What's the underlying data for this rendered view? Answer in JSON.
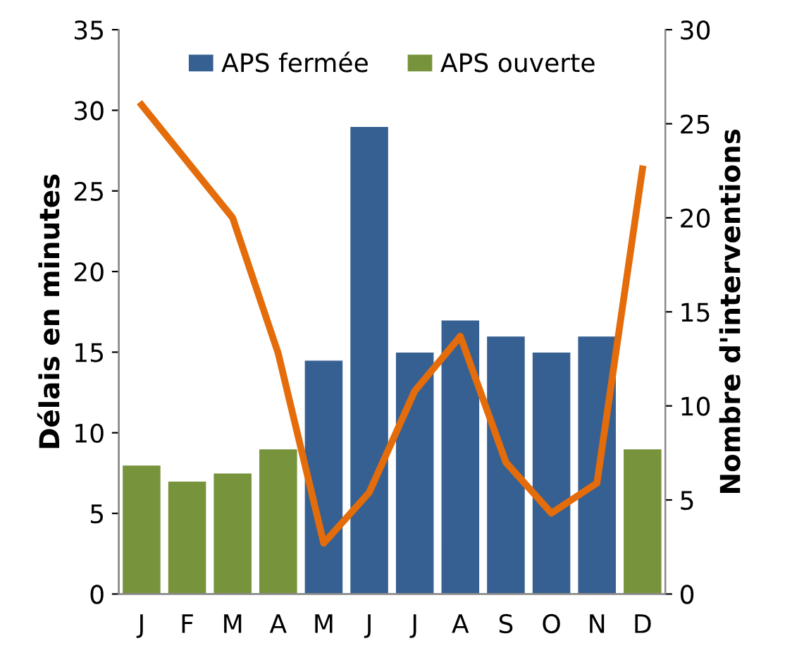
{
  "chart_data": {
    "type": "bar",
    "ylabel": "Délais en minutes",
    "y2label": "Nombre d'interventions",
    "categories": [
      "J",
      "F",
      "M",
      "A",
      "M",
      "J",
      "J",
      "A",
      "S",
      "O",
      "N",
      "D"
    ],
    "series": [
      {
        "name": "APS fermée",
        "color": "#366092",
        "values": [
          null,
          null,
          null,
          null,
          14.5,
          29,
          15,
          17,
          16,
          15,
          16,
          null
        ]
      },
      {
        "name": "APS ouverte",
        "color": "#77933c",
        "values": [
          8,
          7,
          7.5,
          9,
          null,
          null,
          null,
          null,
          null,
          null,
          null,
          9
        ]
      },
      {
        "type": "line",
        "axis": "y2",
        "color": "#e46c0a",
        "values": [
          26,
          23,
          20,
          12.8,
          2.7,
          5.4,
          10.8,
          13.7,
          7,
          4.3,
          5.9,
          22.6
        ]
      }
    ],
    "ylim": [
      0,
      35
    ],
    "yticks": [
      0,
      5,
      10,
      15,
      20,
      25,
      30,
      35
    ],
    "y2lim": [
      0,
      30
    ],
    "y2ticks": [
      0,
      5,
      10,
      15,
      20,
      25,
      30
    ],
    "grid": false,
    "legend": "top",
    "marker": "none",
    "line_style": "solid"
  }
}
